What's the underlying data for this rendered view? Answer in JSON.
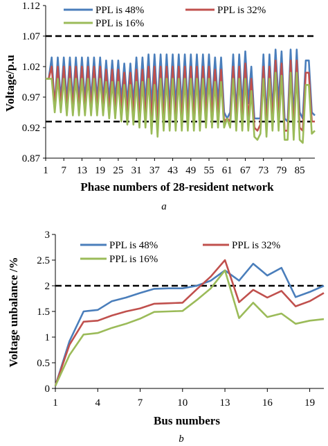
{
  "chart_data": [
    {
      "type": "line",
      "caption": "a",
      "xlabel": "Phase numbers of  28-resident network",
      "ylabel": "Voltage/p.u",
      "xlim": [
        1,
        90
      ],
      "ylim": [
        0.87,
        1.12
      ],
      "y_ticks": [
        "0.87",
        "0.92",
        "0.97",
        "1.02",
        "1.07",
        "1.12"
      ],
      "x_ticks": [
        "1",
        "7",
        "13",
        "19",
        "25",
        "31",
        "37",
        "43",
        "49",
        "55",
        "61",
        "67",
        "73",
        "79",
        "85"
      ],
      "thresholds": [
        1.07,
        0.93
      ],
      "legend": "top",
      "series": [
        {
          "name": "PPL is 48%",
          "color": "#4A7EBB",
          "x": [
            1,
            2,
            3,
            4,
            5,
            6,
            7,
            8,
            9,
            10,
            11,
            12,
            13,
            14,
            15,
            16,
            17,
            18,
            19,
            20,
            21,
            22,
            23,
            24,
            25,
            26,
            27,
            28,
            29,
            30,
            31,
            32,
            33,
            34,
            35,
            36,
            37,
            38,
            39,
            40,
            41,
            42,
            43,
            44,
            45,
            46,
            47,
            48,
            49,
            50,
            51,
            52,
            53,
            54,
            55,
            56,
            57,
            58,
            59,
            60,
            61,
            62,
            63,
            64,
            65,
            66,
            67,
            68,
            69,
            70,
            71,
            72,
            73,
            74,
            75,
            76,
            77,
            78,
            79,
            80,
            81,
            82,
            83,
            84,
            85,
            86,
            87,
            88,
            89,
            90
          ],
          "values": [
            1.0,
            1.0,
            1.035,
            0.955,
            1.035,
            0.965,
            1.035,
            0.965,
            1.035,
            0.965,
            1.035,
            0.965,
            1.035,
            0.965,
            1.035,
            0.965,
            1.035,
            0.965,
            1.035,
            0.965,
            1.03,
            0.965,
            1.03,
            0.965,
            1.03,
            0.965,
            1.025,
            0.96,
            1.025,
            0.96,
            1.035,
            0.96,
            1.035,
            0.96,
            1.04,
            0.955,
            1.04,
            0.955,
            1.04,
            0.955,
            1.04,
            0.955,
            1.04,
            0.955,
            1.04,
            0.955,
            1.04,
            0.955,
            1.04,
            0.955,
            1.04,
            0.955,
            1.04,
            0.96,
            1.04,
            0.96,
            1.035,
            0.96,
            1.035,
            0.945,
            0.935,
            0.945,
            1.04,
            0.945,
            1.04,
            0.955,
            1.045,
            0.96,
            1.02,
            0.935,
            0.935,
            0.935,
            1.04,
            0.935,
            1.04,
            0.945,
            1.048,
            0.96,
            1.045,
            0.935,
            0.93,
            1.048,
            0.935,
            1.048,
            0.945,
            0.935,
            1.03,
            1.03,
            0.945,
            0.94
          ]
        },
        {
          "name": "PPL is 32%",
          "color": "#C0504D",
          "x": [
            1,
            2,
            3,
            4,
            5,
            6,
            7,
            8,
            9,
            10,
            11,
            12,
            13,
            14,
            15,
            16,
            17,
            18,
            19,
            20,
            21,
            22,
            23,
            24,
            25,
            26,
            27,
            28,
            29,
            30,
            31,
            32,
            33,
            34,
            35,
            36,
            37,
            38,
            39,
            40,
            41,
            42,
            43,
            44,
            45,
            46,
            47,
            48,
            49,
            50,
            51,
            52,
            53,
            54,
            55,
            56,
            57,
            58,
            59,
            60,
            61,
            62,
            63,
            64,
            65,
            66,
            67,
            68,
            69,
            70,
            71,
            72,
            73,
            74,
            75,
            76,
            77,
            78,
            79,
            80,
            81,
            82,
            83,
            84,
            85,
            86,
            87,
            88,
            89,
            90
          ],
          "values": [
            1.0,
            1.0,
            1.02,
            0.955,
            1.02,
            0.955,
            1.02,
            0.95,
            1.02,
            0.95,
            1.02,
            0.95,
            1.02,
            0.95,
            1.02,
            0.95,
            1.02,
            0.95,
            1.02,
            0.95,
            1.015,
            0.945,
            1.015,
            0.945,
            1.015,
            0.945,
            1.01,
            0.94,
            1.01,
            0.94,
            1.015,
            0.935,
            1.015,
            0.935,
            1.02,
            0.93,
            1.02,
            0.925,
            1.02,
            0.93,
            1.02,
            0.93,
            1.02,
            0.93,
            1.02,
            0.93,
            1.02,
            0.93,
            1.02,
            0.93,
            1.02,
            0.93,
            1.02,
            0.935,
            1.02,
            0.935,
            1.015,
            0.935,
            1.015,
            0.93,
            0.935,
            0.93,
            1.02,
            0.93,
            1.02,
            0.93,
            1.025,
            0.93,
            1.0,
            0.92,
            0.915,
            0.925,
            1.02,
            0.92,
            1.02,
            0.93,
            1.03,
            0.93,
            1.025,
            0.915,
            0.915,
            1.03,
            0.915,
            1.03,
            0.92,
            0.915,
            1.01,
            1.01,
            0.93,
            0.93
          ]
        },
        {
          "name": "PPL is 16%",
          "color": "#9BBB59",
          "x": [
            1,
            2,
            3,
            4,
            5,
            6,
            7,
            8,
            9,
            10,
            11,
            12,
            13,
            14,
            15,
            16,
            17,
            18,
            19,
            20,
            21,
            22,
            23,
            24,
            25,
            26,
            27,
            28,
            29,
            30,
            31,
            32,
            33,
            34,
            35,
            36,
            37,
            38,
            39,
            40,
            41,
            42,
            43,
            44,
            45,
            46,
            47,
            48,
            49,
            50,
            51,
            52,
            53,
            54,
            55,
            56,
            57,
            58,
            59,
            60,
            61,
            62,
            63,
            64,
            65,
            66,
            67,
            68,
            69,
            70,
            71,
            72,
            73,
            74,
            75,
            76,
            77,
            78,
            79,
            80,
            81,
            82,
            83,
            84,
            85,
            86,
            87,
            88,
            89,
            90
          ],
          "values": [
            1.0,
            1.0,
            1.0,
            0.945,
            1.0,
            0.945,
            1.0,
            0.94,
            1.0,
            0.94,
            1.0,
            0.94,
            1.0,
            0.94,
            1.0,
            0.94,
            1.0,
            0.94,
            1.0,
            0.94,
            0.995,
            0.935,
            0.995,
            0.935,
            0.995,
            0.93,
            0.99,
            0.925,
            0.99,
            0.925,
            0.995,
            0.92,
            0.995,
            0.92,
            1.0,
            0.91,
            0.99,
            0.905,
            1.0,
            0.915,
            1.0,
            0.915,
            1.0,
            0.915,
            1.0,
            0.915,
            1.0,
            0.915,
            1.0,
            0.915,
            1.0,
            0.915,
            1.0,
            0.92,
            1.0,
            0.92,
            0.995,
            0.92,
            0.995,
            0.92,
            0.935,
            0.92,
            1.0,
            0.915,
            1.0,
            0.915,
            1.0,
            0.915,
            0.98,
            0.905,
            0.9,
            0.91,
            1.0,
            0.905,
            1.0,
            0.915,
            1.01,
            0.915,
            1.005,
            0.9,
            0.9,
            1.01,
            0.9,
            1.01,
            0.9,
            0.895,
            0.99,
            0.99,
            0.91,
            0.915
          ]
        }
      ]
    },
    {
      "type": "line",
      "caption": "b",
      "xlabel": "Bus numbers",
      "ylabel": "Voltage unbalance /%",
      "xlim": [
        1,
        20
      ],
      "ylim": [
        0,
        3
      ],
      "y_ticks": [
        "0",
        "0.5",
        "1",
        "1.5",
        "2",
        "2.5",
        "3"
      ],
      "x_ticks": [
        "1",
        "4",
        "7",
        "10",
        "13",
        "16",
        "19"
      ],
      "thresholds": [
        2
      ],
      "legend": "top",
      "series": [
        {
          "name": "PPL is 48%",
          "color": "#4A7EBB",
          "x": [
            1,
            2,
            3,
            4,
            5,
            6,
            7,
            8,
            9,
            10,
            11,
            12,
            13,
            14,
            15,
            16,
            17,
            18,
            19,
            20
          ],
          "values": [
            0.05,
            0.92,
            1.5,
            1.53,
            1.7,
            1.77,
            1.86,
            1.94,
            1.95,
            1.95,
            2.0,
            2.1,
            2.3,
            2.1,
            2.43,
            2.2,
            2.35,
            1.78,
            1.88,
            2.0
          ]
        },
        {
          "name": "PPL is 32%",
          "color": "#C0504D",
          "x": [
            1,
            2,
            3,
            4,
            5,
            6,
            7,
            8,
            9,
            10,
            11,
            12,
            13,
            14,
            15,
            16,
            17,
            18,
            19,
            20
          ],
          "values": [
            0.05,
            0.85,
            1.3,
            1.32,
            1.42,
            1.5,
            1.56,
            1.65,
            1.66,
            1.67,
            1.93,
            2.18,
            2.5,
            1.68,
            1.92,
            1.77,
            1.9,
            1.6,
            1.7,
            1.86
          ]
        },
        {
          "name": "PPL is 16%",
          "color": "#9BBB59",
          "x": [
            1,
            2,
            3,
            4,
            5,
            6,
            7,
            8,
            9,
            10,
            11,
            12,
            13,
            14,
            15,
            16,
            17,
            18,
            19,
            20
          ],
          "values": [
            0.05,
            0.65,
            1.05,
            1.08,
            1.18,
            1.26,
            1.36,
            1.49,
            1.5,
            1.51,
            1.72,
            1.95,
            2.3,
            1.37,
            1.67,
            1.39,
            1.46,
            1.26,
            1.32,
            1.35
          ]
        }
      ]
    }
  ]
}
